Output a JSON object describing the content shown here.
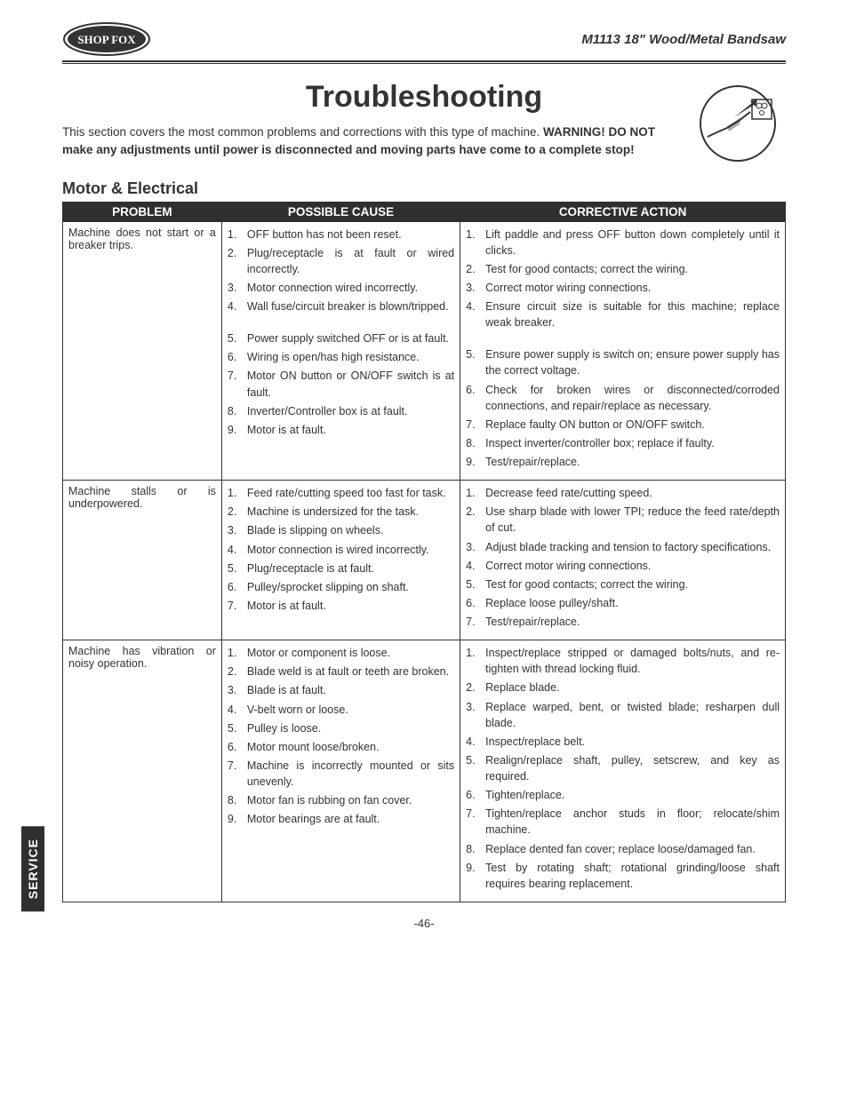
{
  "header": {
    "product_title": "M1113 18\" Wood/Metal Bandsaw",
    "logo_text": "SHOP FOX"
  },
  "page": {
    "title": "Troubleshooting",
    "intro_plain": "This section covers the most common problems and corrections with this type of machine. ",
    "intro_bold": "WARNING! DO NOT make any adjustments until power is disconnected and moving parts have come to a complete stop!",
    "section_heading": "Motor & Electrical",
    "page_number": "-46-",
    "side_tab": "SERVICE"
  },
  "table": {
    "headers": {
      "problem": "PROBLEM",
      "cause": "POSSIBLE CAUSE",
      "action": "CORRECTIVE ACTION"
    },
    "rows": [
      {
        "problem": "Machine does not start or a breaker trips.",
        "causes": [
          {
            "text": "OFF button has not been reset."
          },
          {
            "text": "Plug/receptacle is at fault or wired incorrectly."
          },
          {
            "text": "Motor connection wired incorrectly."
          },
          {
            "text": "Wall fuse/circuit breaker is blown/tripped."
          },
          {
            "text": "Power supply switched OFF or is at fault.",
            "gap": true
          },
          {
            "text": "Wiring is open/has high resistance."
          },
          {
            "text": "Motor ON button or ON/OFF switch is at fault."
          },
          {
            "text": "Inverter/Controller box is at fault."
          },
          {
            "text": "Motor is at fault."
          }
        ],
        "actions": [
          {
            "text": "Lift paddle and press OFF button down completely until it clicks."
          },
          {
            "text": "Test for good contacts; correct the wiring."
          },
          {
            "text": "Correct motor wiring connections."
          },
          {
            "text": "Ensure circuit size is suitable for this machine; replace weak breaker."
          },
          {
            "text": "Ensure power supply is switch on; ensure power supply has the correct voltage.",
            "gap": true
          },
          {
            "text": "Check for broken wires or disconnected/corroded connections, and repair/replace as necessary."
          },
          {
            "text": "Replace faulty ON button or ON/OFF switch."
          },
          {
            "text": "Inspect inverter/controller box; replace if faulty."
          },
          {
            "text": "Test/repair/replace."
          }
        ]
      },
      {
        "problem": "Machine stalls or is underpowered.",
        "causes": [
          {
            "text": "Feed rate/cutting speed too fast for task."
          },
          {
            "text": "Machine is undersized for the task."
          },
          {
            "text": "Blade is slipping on wheels."
          },
          {
            "text": "Motor connection is wired incorrectly."
          },
          {
            "text": "Plug/receptacle is at fault."
          },
          {
            "text": "Pulley/sprocket slipping on shaft."
          },
          {
            "text": "Motor is at fault."
          }
        ],
        "actions": [
          {
            "text": "Decrease feed rate/cutting speed."
          },
          {
            "text": "Use sharp blade with lower TPI; reduce the feed rate/depth of cut."
          },
          {
            "text": "Adjust blade tracking and tension to factory specifications."
          },
          {
            "text": "Correct motor wiring connections."
          },
          {
            "text": "Test for good contacts; correct the wiring."
          },
          {
            "text": "Replace loose pulley/shaft."
          },
          {
            "text": "Test/repair/replace."
          }
        ]
      },
      {
        "problem": "Machine has vibration or noisy operation.",
        "causes": [
          {
            "text": "Motor or component is loose."
          },
          {
            "text": "Blade weld is at fault or teeth are broken."
          },
          {
            "text": "Blade is at fault."
          },
          {
            "text": "V-belt worn or loose."
          },
          {
            "text": "Pulley is loose."
          },
          {
            "text": "Motor mount loose/broken."
          },
          {
            "text": "Machine is incorrectly mounted or sits unevenly."
          },
          {
            "text": "Motor fan is rubbing on fan cover."
          },
          {
            "text": "Motor bearings are at fault."
          }
        ],
        "actions": [
          {
            "text": "Inspect/replace stripped or damaged bolts/nuts, and re-tighten with thread locking fluid."
          },
          {
            "text": "Replace blade."
          },
          {
            "text": "Replace warped, bent, or twisted blade; resharpen dull blade."
          },
          {
            "text": "Inspect/replace belt."
          },
          {
            "text": "Realign/replace shaft, pulley, setscrew, and key as required."
          },
          {
            "text": "Tighten/replace."
          },
          {
            "text": "Tighten/replace anchor studs in floor; relocate/shim machine."
          },
          {
            "text": "Replace dented fan cover; replace loose/damaged fan."
          },
          {
            "text": "Test by rotating shaft; rotational grinding/loose shaft requires bearing replacement."
          }
        ]
      }
    ]
  }
}
